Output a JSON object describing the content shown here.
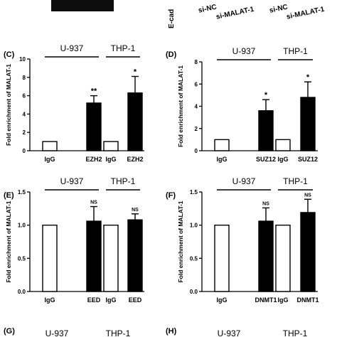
{
  "top_strip": {
    "gel_label": "E-cad",
    "lane_labels": [
      "si-NC",
      "si-MALAT-1",
      "si-NC",
      "si-MALAT-1"
    ]
  },
  "chart_data": [
    {
      "panel": "(C)",
      "type": "bar",
      "ylabel": "Fold enrichment of MALAT-1",
      "ylim": [
        0,
        10
      ],
      "yticks": [
        0,
        2,
        4,
        6,
        8,
        10
      ],
      "groups": [
        {
          "name": "U-937",
          "categories": [
            "IgG",
            "EZH2"
          ],
          "values": [
            1.0,
            5.2
          ],
          "errors": [
            0,
            0.8
          ],
          "significance": "**"
        },
        {
          "name": "THP-1",
          "categories": [
            "IgG",
            "EZH2"
          ],
          "values": [
            1.0,
            6.3
          ],
          "errors": [
            0,
            1.8
          ],
          "significance": "*"
        }
      ]
    },
    {
      "panel": "(D)",
      "type": "bar",
      "ylabel": "Fold enrichment of MALAT-1",
      "ylim": [
        0,
        8
      ],
      "yticks": [
        0,
        2,
        4,
        6,
        8
      ],
      "groups": [
        {
          "name": "U-937",
          "categories": [
            "IgG",
            "SUZ12"
          ],
          "values": [
            1.0,
            3.6
          ],
          "errors": [
            0,
            1.0
          ],
          "significance": "*"
        },
        {
          "name": "THP-1",
          "categories": [
            "IgG",
            "SUZ12"
          ],
          "values": [
            1.0,
            4.8
          ],
          "errors": [
            0,
            1.4
          ],
          "significance": "*"
        }
      ]
    },
    {
      "panel": "(E)",
      "type": "bar",
      "ylabel": "Fold enrichment of MALAT-1",
      "ylim": [
        0,
        1.5
      ],
      "yticks": [
        0.0,
        0.5,
        1.0,
        1.5
      ],
      "groups": [
        {
          "name": "U-937",
          "categories": [
            "IgG",
            "EED"
          ],
          "values": [
            1.0,
            1.06
          ],
          "errors": [
            0,
            0.22
          ],
          "significance": "NS"
        },
        {
          "name": "THP-1",
          "categories": [
            "IgG",
            "EED"
          ],
          "values": [
            1.0,
            1.08
          ],
          "errors": [
            0,
            0.09
          ],
          "significance": "NS"
        }
      ]
    },
    {
      "panel": "(F)",
      "type": "bar",
      "ylabel": "Fold enrichment of MALAT-1",
      "ylim": [
        0,
        1.5
      ],
      "yticks": [
        0.0,
        0.5,
        1.0,
        1.5
      ],
      "groups": [
        {
          "name": "U-937",
          "categories": [
            "IgG",
            "DNMT1"
          ],
          "values": [
            1.0,
            1.06
          ],
          "errors": [
            0,
            0.2
          ],
          "significance": "NS"
        },
        {
          "name": "THP-1",
          "categories": [
            "IgG",
            "DNMT1"
          ],
          "values": [
            1.0,
            1.19
          ],
          "errors": [
            0,
            0.2
          ],
          "significance": "NS"
        }
      ]
    }
  ],
  "bottom_partial": {
    "panel_g": "(G)",
    "panel_h": "(H)",
    "g_cells": [
      "U-937",
      "THP-1"
    ],
    "h_cells": [
      "U-937",
      "THP-1"
    ]
  }
}
